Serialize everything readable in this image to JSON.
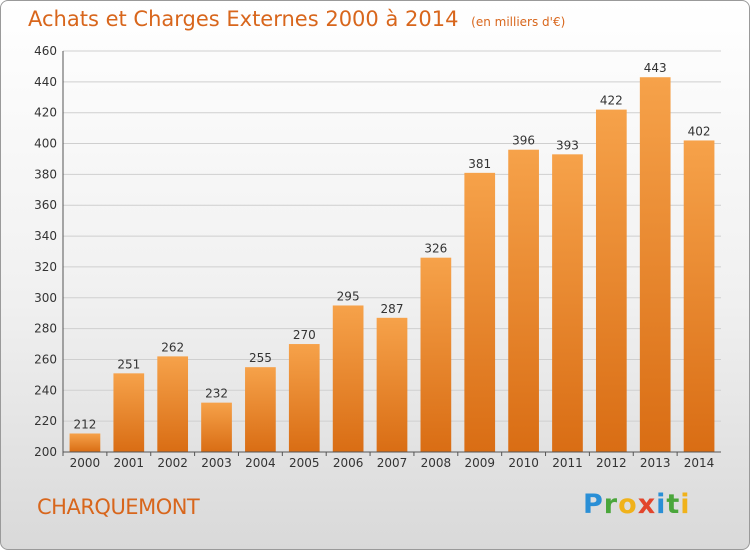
{
  "chart_data": {
    "type": "bar",
    "title": "Achats et Charges Externes 2000 à 2014",
    "unit": "(en milliers d'€)",
    "categories": [
      "2000",
      "2001",
      "2002",
      "2003",
      "2004",
      "2005",
      "2006",
      "2007",
      "2008",
      "2009",
      "2010",
      "2011",
      "2012",
      "2013",
      "2014"
    ],
    "values": [
      212,
      251,
      262,
      232,
      255,
      270,
      295,
      287,
      326,
      381,
      396,
      393,
      422,
      443,
      402
    ],
    "ylim": [
      200,
      460
    ],
    "yticks": [
      200,
      220,
      240,
      260,
      280,
      300,
      320,
      340,
      360,
      380,
      400,
      420,
      440,
      460
    ],
    "grid": true,
    "bar_color": "#f0922e"
  },
  "location": "CHARQUEMONT",
  "logo": {
    "p": "P",
    "r": "r",
    "o": "o",
    "x": "x",
    "i": "i",
    "t": "t",
    "i2": "i"
  }
}
